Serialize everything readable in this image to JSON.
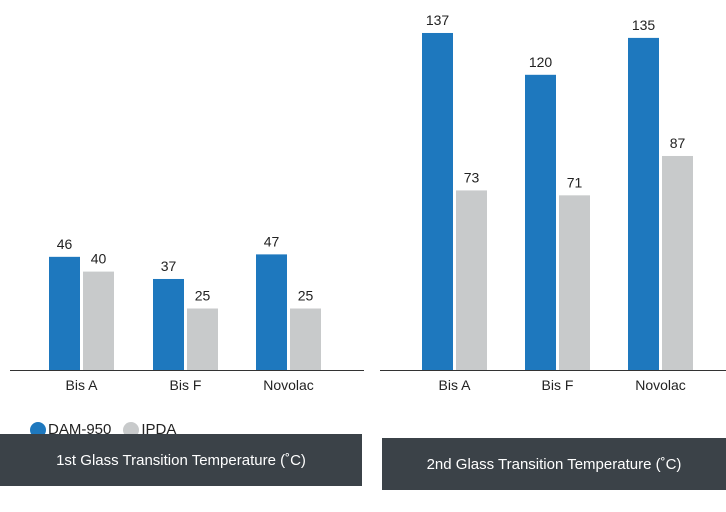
{
  "chart_data": [
    {
      "type": "bar",
      "title": "1st Glass Transition Temperature (˚C)",
      "categories": [
        "Bis A",
        "Bis F",
        "Novolac"
      ],
      "series": [
        {
          "name": "DAM-950",
          "values": [
            46,
            37,
            47
          ]
        },
        {
          "name": "IPDA",
          "values": [
            40,
            25,
            25
          ]
        }
      ],
      "ylim": [
        0,
        137
      ],
      "grid": false,
      "legend": "bottom-left"
    },
    {
      "type": "bar",
      "title": "2nd Glass Transition Temperature (˚C)",
      "categories": [
        "Bis A",
        "Bis F",
        "Novolac"
      ],
      "series": [
        {
          "name": "DAM-950",
          "values": [
            137,
            120,
            135
          ]
        },
        {
          "name": "IPDA",
          "values": [
            73,
            71,
            87
          ]
        }
      ],
      "ylim": [
        0,
        137
      ],
      "grid": false
    }
  ],
  "legend": {
    "items": [
      {
        "label": "DAM-950",
        "color": "#1e78be"
      },
      {
        "label": "IPDA",
        "color": "#c8cacb"
      }
    ]
  },
  "colors": {
    "series": [
      "#1e78be",
      "#c8cacb"
    ],
    "caption_bg": "#3b4248"
  }
}
